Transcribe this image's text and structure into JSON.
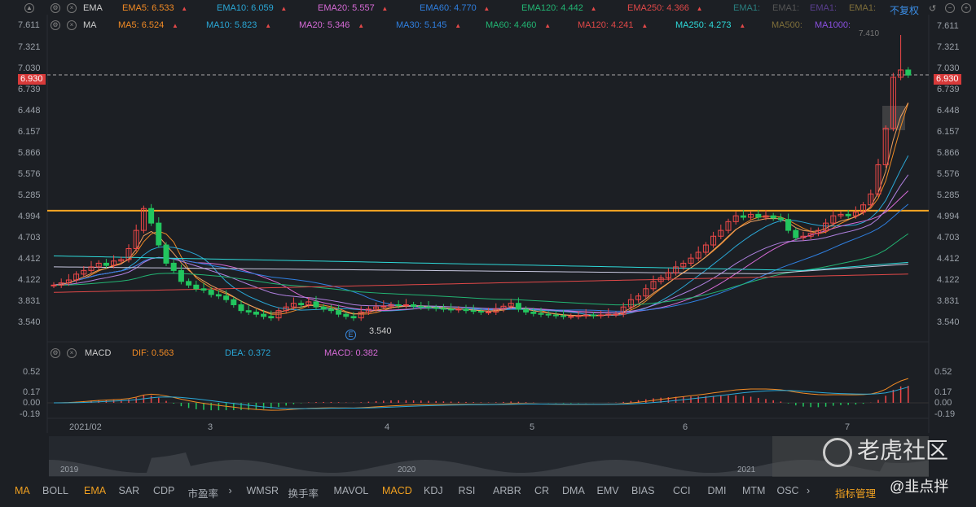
{
  "header": {
    "ema_label": "EMA",
    "ma_label": "MA",
    "top_price": "7.611",
    "fuquan": "不复权",
    "ema": [
      {
        "t": "EMA5: 6.533",
        "c": "#f08a24"
      },
      {
        "t": "EMA10: 6.059",
        "c": "#2aa7d6"
      },
      {
        "t": "EMA20: 5.557",
        "c": "#d66ad6"
      },
      {
        "t": "EMA60: 4.770",
        "c": "#2f7fe0"
      },
      {
        "t": "EMA120: 4.442",
        "c": "#22b573"
      },
      {
        "t": "EMA250: 4.366",
        "c": "#e04848"
      }
    ],
    "ema_off": [
      {
        "t": "EMA1:",
        "c": "#2a7f7f"
      },
      {
        "t": "EMA1:",
        "c": "#555"
      },
      {
        "t": "EMA1:",
        "c": "#5a3f8f"
      },
      {
        "t": "EMA1:",
        "c": "#7f6f3a"
      }
    ],
    "ma": [
      {
        "t": "MA5: 6.524",
        "c": "#f08a24"
      },
      {
        "t": "MA10: 5.823",
        "c": "#2aa7d6"
      },
      {
        "t": "MA20: 5.346",
        "c": "#d66ad6"
      },
      {
        "t": "MA30: 5.145",
        "c": "#2f7fe0"
      },
      {
        "t": "MA60: 4.460",
        "c": "#22b573"
      },
      {
        "t": "MA120: 4.241",
        "c": "#e04848"
      },
      {
        "t": "MA250: 4.273",
        "c": "#2ed8d8"
      }
    ],
    "ma_off": [
      {
        "t": "MA500:",
        "c": "#7f6f3a"
      },
      {
        "t": "MA1000:",
        "c": "#8a4fe0"
      }
    ]
  },
  "price_axis": [
    "7.611",
    "7.321",
    "7.030",
    "6.739",
    "6.448",
    "6.157",
    "5.866",
    "5.576",
    "5.285",
    "4.994",
    "4.703",
    "4.412",
    "4.122",
    "3.831",
    "3.540"
  ],
  "current_price": "6.930",
  "high_label": "7.410",
  "low_label": "3.540",
  "event_marker": "E",
  "macd_header": {
    "label": "MACD",
    "dif": "DIF: 0.563",
    "dea": "DEA: 0.372",
    "macd": "MACD: 0.382"
  },
  "macd_axis": [
    "0.52",
    "0.17",
    "0.00",
    "-0.19"
  ],
  "time_axis": [
    "2021/02",
    "3",
    "4",
    "5",
    "6",
    "7"
  ],
  "minimap_years": [
    "2019",
    "2020",
    "2021"
  ],
  "watermark": "老虎社区",
  "credit": "@韭点拌",
  "toolbar": [
    "MA",
    "BOLL",
    "EMA",
    "SAR",
    "CDP",
    "市盈率",
    "WMSR",
    "换手率",
    "MAVOL",
    "MACD",
    "KDJ",
    "RSI",
    "ARBR",
    "CR",
    "DMA",
    "EMV",
    "BIAS",
    "CCI",
    "DMI",
    "MTM",
    "OSC"
  ],
  "toolbar_active": [
    "MA",
    "EMA",
    "MACD"
  ],
  "manage": "指标管理",
  "chart_data": {
    "type": "candlestick",
    "support_line": 5.07,
    "closes": [
      4.05,
      4.08,
      4.12,
      4.2,
      4.25,
      4.3,
      4.35,
      4.32,
      4.38,
      4.4,
      4.55,
      4.8,
      5.1,
      4.9,
      4.6,
      4.35,
      4.25,
      4.1,
      4.05,
      4.0,
      3.98,
      3.92,
      3.9,
      3.85,
      3.78,
      3.7,
      3.68,
      3.65,
      3.62,
      3.6,
      3.7,
      3.75,
      3.8,
      3.78,
      3.82,
      3.75,
      3.72,
      3.7,
      3.65,
      3.62,
      3.6,
      3.68,
      3.72,
      3.75,
      3.76,
      3.78,
      3.77,
      3.78,
      3.76,
      3.75,
      3.74,
      3.73,
      3.72,
      3.71,
      3.72,
      3.7,
      3.69,
      3.68,
      3.68,
      3.72,
      3.76,
      3.8,
      3.72,
      3.68,
      3.66,
      3.65,
      3.64,
      3.63,
      3.62,
      3.62,
      3.63,
      3.64,
      3.63,
      3.64,
      3.65,
      3.65,
      3.75,
      3.85,
      3.9,
      4.0,
      4.1,
      4.15,
      4.22,
      4.3,
      4.35,
      4.42,
      4.5,
      4.6,
      4.72,
      4.8,
      4.92,
      5.0,
      4.98,
      5.02,
      4.98,
      5.0,
      4.97,
      4.95,
      4.8,
      4.7,
      4.72,
      4.76,
      4.8,
      4.9,
      5.0,
      5.02,
      5.0,
      5.05,
      5.15,
      5.3,
      5.7,
      6.2,
      6.9,
      7.0,
      6.93
    ]
  }
}
